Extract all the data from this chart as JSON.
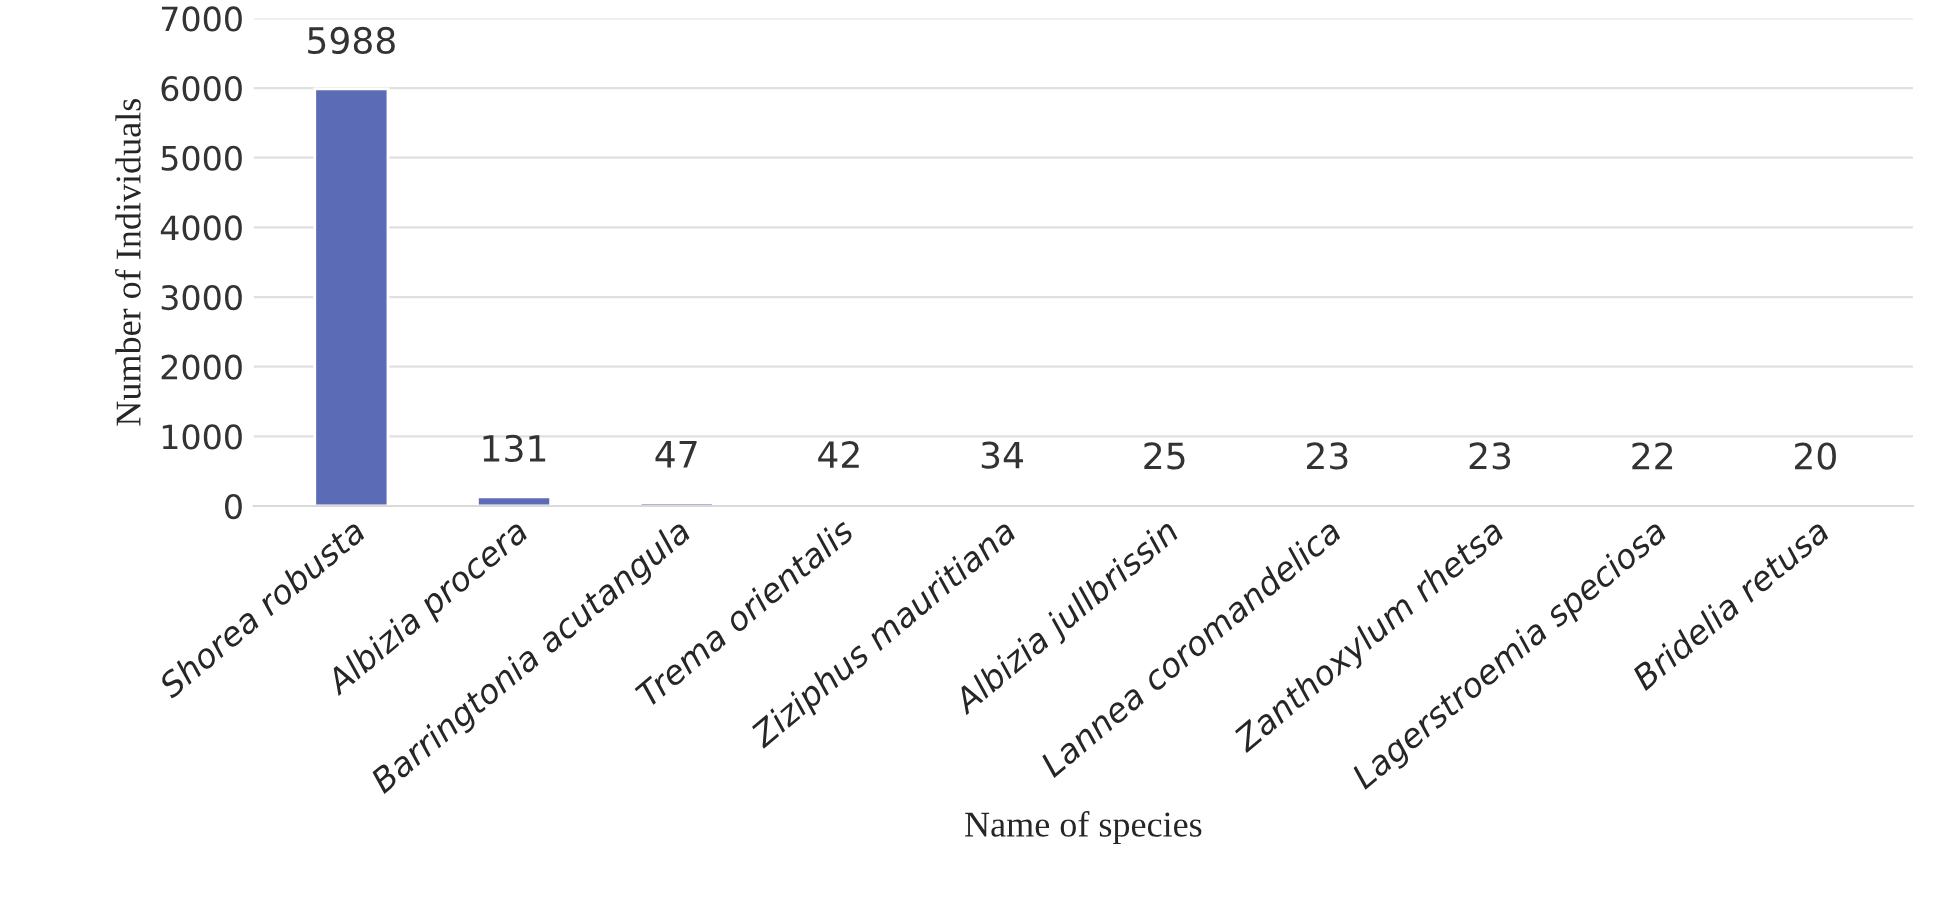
{
  "chart_data": {
    "type": "bar",
    "xlabel": "Name of species",
    "ylabel": "Number of Individuals",
    "categories": [
      "Shorea robusta",
      "Albizia procera",
      "Barringtonia acutangula",
      "Trema orientalis",
      "Ziziphus mauritiana",
      "Albizia jullbrissin",
      "Lannea coromandelica",
      "Zanthoxylum rhetsa",
      "Lagerstroemia speciosa",
      "Bridelia retusa"
    ],
    "values": [
      5988,
      131,
      47,
      42,
      34,
      25,
      23,
      23,
      22,
      20
    ],
    "color": "#5b6bb5",
    "ylim": [
      0,
      7000
    ],
    "yticks": [
      0,
      1000,
      2000,
      3000,
      4000,
      5000,
      6000,
      7000
    ],
    "grid": "y",
    "data_labels": true
  }
}
